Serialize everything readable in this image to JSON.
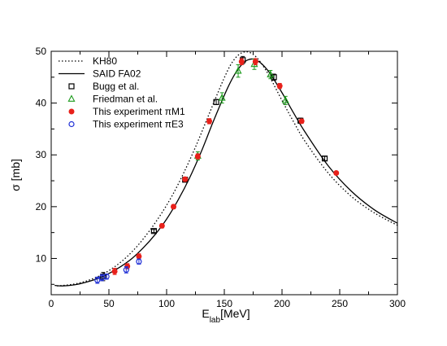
{
  "chart_data": {
    "type": "scatter",
    "xlabel": "E",
    "xlabel_sub": "lab",
    "xlabel_unit": "[MeV]",
    "ylabel": "σ [mb]",
    "xlim": [
      0,
      300
    ],
    "ylim": [
      3,
      50
    ],
    "xticks": [
      0,
      50,
      100,
      150,
      200,
      250,
      300
    ],
    "yticks": [
      10,
      20,
      30,
      40,
      50
    ],
    "grid": false,
    "legend_position": "top-left",
    "series": [
      {
        "name": "KH80",
        "kind": "line",
        "style": "dotted",
        "color": "#000000",
        "x": [
          5,
          15,
          25,
          35,
          45,
          55,
          65,
          75,
          85,
          95,
          105,
          115,
          125,
          135,
          145,
          150,
          155,
          160,
          165,
          170,
          175,
          180,
          185,
          190,
          200,
          210,
          220,
          240,
          260,
          280,
          300
        ],
        "y": [
          4.7,
          4.9,
          5.3,
          6.0,
          7.0,
          8.4,
          10.2,
          12.5,
          15.3,
          18.5,
          22.2,
          26.6,
          31.5,
          36.9,
          42.3,
          44.9,
          47.2,
          48.8,
          49.7,
          49.9,
          49.4,
          48.3,
          46.7,
          44.8,
          40.5,
          36.4,
          32.6,
          26.5,
          22.0,
          18.8,
          16.4
        ]
      },
      {
        "name": "SAID FA02",
        "kind": "line",
        "style": "solid",
        "color": "#000000",
        "x": [
          3,
          10,
          20,
          30,
          40,
          50,
          60,
          70,
          80,
          90,
          100,
          110,
          120,
          130,
          140,
          150,
          155,
          160,
          165,
          170,
          175,
          180,
          185,
          190,
          200,
          210,
          220,
          240,
          260,
          280,
          300
        ],
        "y": [
          4.8,
          4.7,
          4.9,
          5.4,
          6.1,
          7.1,
          8.4,
          10.0,
          12.1,
          14.6,
          17.6,
          21.3,
          25.6,
          30.6,
          36.2,
          41.5,
          43.9,
          45.9,
          47.4,
          48.3,
          48.5,
          48.0,
          47.0,
          45.6,
          42.0,
          38.1,
          34.4,
          27.9,
          23.0,
          19.4,
          16.8
        ]
      },
      {
        "name": "Bugg et al.",
        "kind": "points",
        "marker": "square",
        "color": "#000000",
        "x": [
          45,
          89,
          116,
          143,
          166,
          193,
          216,
          237
        ],
        "y": [
          6.5,
          15.3,
          25.2,
          40.2,
          48.3,
          45.0,
          36.6,
          29.3
        ],
        "err": [
          0.8,
          0.3,
          0.4,
          0.5,
          0.7,
          0.6,
          0.5,
          0.4
        ]
      },
      {
        "name": "Friedman et al.",
        "kind": "points",
        "marker": "triangle",
        "color": "#1a9a1a",
        "x": [
          127,
          148,
          162,
          176,
          190,
          203
        ],
        "y": [
          29.8,
          41.0,
          46.2,
          47.5,
          45.5,
          40.5
        ],
        "err": [
          0.8,
          1.0,
          1.2,
          1.0,
          0.8,
          0.8
        ]
      },
      {
        "name": "This experiment πM1",
        "kind": "points",
        "marker": "filled-circle",
        "color": "#e8211b",
        "x": [
          55,
          66,
          76,
          96,
          106,
          116,
          127,
          137,
          165,
          177,
          198,
          217,
          247
        ],
        "y": [
          7.5,
          8.5,
          10.4,
          16.3,
          20.0,
          25.3,
          29.7,
          36.5,
          48.0,
          48.0,
          43.3,
          36.5,
          26.5
        ],
        "err": [
          0.6,
          0.5,
          0.5,
          0.4,
          0.4,
          0.4,
          0.5,
          0.5,
          0.6,
          0.6,
          0.5,
          0.4,
          0.3
        ]
      },
      {
        "name": "This experiment πE3",
        "kind": "points",
        "marker": "open-circle",
        "color": "#1f2fd6",
        "x": [
          40,
          44,
          48,
          65,
          76
        ],
        "y": [
          5.8,
          6.3,
          6.5,
          7.8,
          9.4
        ],
        "err": [
          0.6,
          0.6,
          0.5,
          0.6,
          0.5
        ]
      }
    ]
  }
}
